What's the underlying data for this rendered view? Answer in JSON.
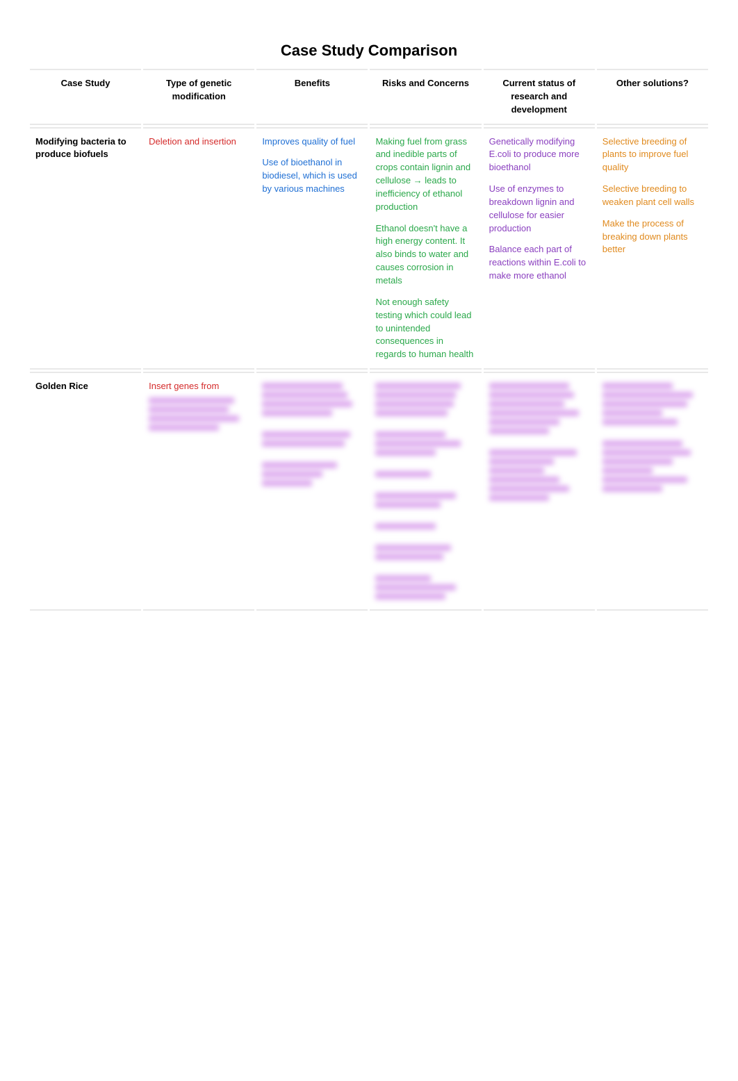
{
  "title": "Case Study Comparison",
  "columns": [
    "Case Study",
    "Type of genetic modification",
    "Benefits",
    "Risks and Concerns",
    "Current status of research and development",
    "Other solutions?"
  ],
  "rows": [
    {
      "case_study": "Modifying bacteria to produce biofuels",
      "type": {
        "color": "#d42a2a",
        "paras": [
          "Deletion and insertion"
        ]
      },
      "benefits": {
        "color": "#1f6fd4",
        "paras": [
          "Improves quality of fuel",
          "Use of bioethanol in biodiesel, which is used by various machines"
        ]
      },
      "risks": {
        "color": "#2aa84a",
        "paras": [
          "Making fuel from grass and inedible parts of crops contain lignin and cellulose → leads to inefficiency of ethanol production",
          "Ethanol doesn't have a high energy content. It also binds to water and causes corrosion in metals",
          "Not enough safety testing which could lead to unintended consequences in regards to human health"
        ]
      },
      "status": {
        "color": "#8a3fbf",
        "paras": [
          "Genetically modifying E.coli to produce more bioethanol",
          "Use of enzymes to breakdown lignin and cellulose for easier production",
          "Balance each part of reactions within E.coli to make more ethanol"
        ]
      },
      "other": {
        "color": "#e08a1e",
        "paras": [
          "Selective breeding of plants to improve fuel quality",
          "Selective breeding to weaken plant cell walls",
          "Make the process of breaking down plants better"
        ]
      }
    },
    {
      "case_study": "Golden Rice",
      "type": {
        "color": "#d42a2a",
        "paras": [
          "Insert genes from"
        ]
      },
      "benefits": {
        "redacted": true,
        "color": "#c060e0",
        "lines": [
          80,
          85,
          90,
          70,
          0,
          88,
          82,
          0,
          75,
          60,
          50
        ]
      },
      "risks": {
        "redacted": true,
        "color": "#c060e0",
        "lines": [
          85,
          80,
          78,
          72,
          0,
          70,
          85,
          60,
          0,
          55,
          0,
          80,
          65,
          0,
          60,
          0,
          75,
          68,
          0,
          55,
          80,
          70
        ]
      },
      "status": {
        "redacted": true,
        "color": "#c060e0",
        "lines": [
          80,
          85,
          75,
          90,
          70,
          60,
          0,
          88,
          65,
          55,
          70,
          80,
          60
        ]
      },
      "other": {
        "redacted": true,
        "color": "#c060e0",
        "lines": [
          70,
          90,
          85,
          60,
          75,
          0,
          80,
          88,
          70,
          50,
          85,
          60
        ]
      }
    }
  ]
}
